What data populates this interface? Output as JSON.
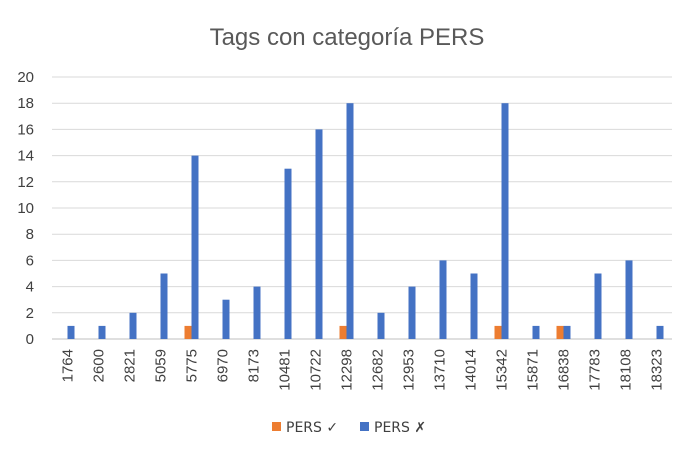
{
  "chart_data": {
    "type": "bar",
    "title": "Tags con categoría PERS",
    "xlabel": "",
    "ylabel": "",
    "ylim": [
      0,
      20
    ],
    "yticks": [
      0,
      2,
      4,
      6,
      8,
      10,
      12,
      14,
      16,
      18,
      20
    ],
    "grid": true,
    "legend_position": "bottom",
    "categories": [
      "1764",
      "2600",
      "2821",
      "5059",
      "5775",
      "6970",
      "8173",
      "10481",
      "10722",
      "12298",
      "12682",
      "12953",
      "13710",
      "14014",
      "15342",
      "15871",
      "16838",
      "17783",
      "18108",
      "18323"
    ],
    "series": [
      {
        "name": "PERS ✓",
        "color": "#ED7D31",
        "values": [
          0,
          0,
          0,
          0,
          1,
          0,
          0,
          0,
          0,
          1,
          0,
          0,
          0,
          0,
          1,
          0,
          1,
          0,
          0,
          0
        ]
      },
      {
        "name": "PERS ✗",
        "color": "#4472C4",
        "values": [
          1,
          1,
          2,
          5,
          14,
          3,
          4,
          13,
          16,
          18,
          2,
          4,
          6,
          5,
          18,
          1,
          1,
          5,
          6,
          1
        ]
      }
    ]
  }
}
